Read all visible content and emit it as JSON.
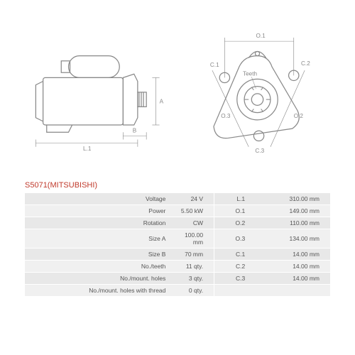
{
  "part": {
    "title": "S5071(MITSUBISHI)"
  },
  "left_diagram": {
    "labels": {
      "A": "A",
      "B": "B",
      "L1": "L.1"
    },
    "stroke": "#888888",
    "stroke_width": 1
  },
  "right_diagram": {
    "labels": {
      "O1": "O.1",
      "O2": "O.2",
      "O3": "O.3",
      "C1": "C.1",
      "C2": "C.2",
      "C3": "C.3",
      "teeth": "Teeth"
    },
    "stroke": "#888888",
    "stroke_width": 1
  },
  "specs": {
    "rows": [
      {
        "label": "Voltage",
        "value": "24 V",
        "label2": "L.1",
        "value2": "310.00 mm"
      },
      {
        "label": "Power",
        "value": "5.50 kW",
        "label2": "O.1",
        "value2": "149.00 mm"
      },
      {
        "label": "Rotation",
        "value": "CW",
        "label2": "O.2",
        "value2": "110.00 mm"
      },
      {
        "label": "Size A",
        "value": "100.00 mm",
        "label2": "O.3",
        "value2": "134.00 mm"
      },
      {
        "label": "Size B",
        "value": "70 mm",
        "label2": "C.1",
        "value2": "14.00 mm"
      },
      {
        "label": "No./teeth",
        "value": "11 qty.",
        "label2": "C.2",
        "value2": "14.00 mm"
      },
      {
        "label": "No./mount. holes",
        "value": "3 qty.",
        "label2": "C.3",
        "value2": "14.00 mm"
      },
      {
        "label": "No./mount. holes with thread",
        "value": "0 qty.",
        "label2": "",
        "value2": ""
      }
    ],
    "row_bg_odd": "#e8e8e8",
    "row_bg_even": "#f0f0f0"
  }
}
